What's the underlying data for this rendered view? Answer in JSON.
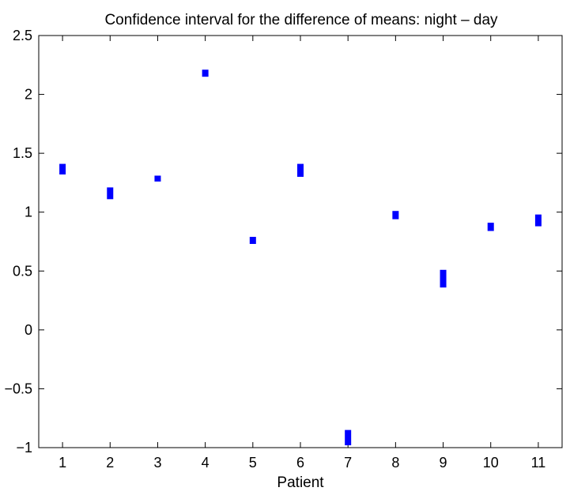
{
  "chart_data": {
    "type": "interval",
    "title": "Confidence interval for the difference of means: night – day",
    "xlabel": "Patient",
    "ylabel": "",
    "xlim": [
      0.5,
      11.5
    ],
    "ylim": [
      -1,
      2.5
    ],
    "x_ticks": [
      "1",
      "2",
      "3",
      "4",
      "5",
      "6",
      "7",
      "8",
      "9",
      "10",
      "11"
    ],
    "y_ticks": [
      "−1",
      "−0.5",
      "0",
      "0.5",
      "1",
      "1.5",
      "2",
      "2.5"
    ],
    "y_tick_values": [
      -1,
      -0.5,
      0,
      0.5,
      1,
      1.5,
      2,
      2.5
    ],
    "grid": false,
    "color": "#0000ff",
    "series": [
      {
        "x": [
          1,
          2,
          3,
          4,
          5,
          6,
          7,
          8,
          9,
          10,
          11
        ],
        "lower": [
          1.32,
          1.11,
          1.26,
          2.15,
          0.73,
          1.3,
          -0.98,
          0.94,
          0.36,
          0.84,
          0.88
        ],
        "upper": [
          1.41,
          1.21,
          1.31,
          2.21,
          0.79,
          1.41,
          -0.85,
          1.01,
          0.51,
          0.91,
          0.98
        ]
      }
    ]
  }
}
